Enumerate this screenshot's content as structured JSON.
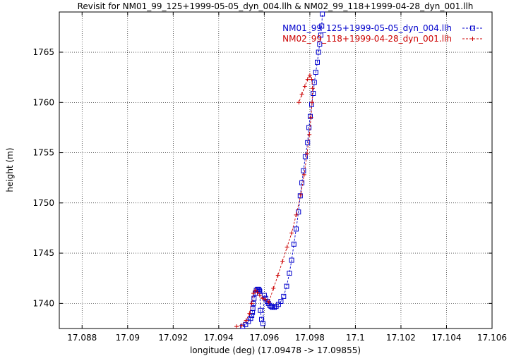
{
  "chart_data": {
    "type": "line",
    "title": "Revisit for NM01_99_125+1999-05-05_dyn_004.llh & NM02_99_118+1999-04-28_dyn_001.llh",
    "xlabel": "longitude (deg) (17.09478 -> 17.09855)",
    "ylabel": "height (m)",
    "xlim": [
      17.087,
      17.106
    ],
    "ylim": [
      1737.5,
      1769
    ],
    "xticks": [
      "17.088",
      "17.09",
      "17.092",
      "17.094",
      "17.096",
      "17.098",
      "17.1",
      "17.102",
      "17.104",
      "17.106"
    ],
    "yticks": [
      "1740",
      "1745",
      "1750",
      "1755",
      "1760",
      "1765"
    ],
    "grid": true,
    "legend_position": "top-right",
    "series": [
      {
        "name": "NM01_99_125+1999-05-05_dyn_004.llh",
        "color": "#0000cc",
        "marker": "square",
        "line": "dashed",
        "x": [
          17.09505,
          17.09518,
          17.0953,
          17.0954,
          17.09545,
          17.09548,
          17.0955,
          17.09552,
          17.09555,
          17.0956,
          17.09565,
          17.0957,
          17.09575,
          17.09578,
          17.0958,
          17.09583,
          17.09588,
          17.09594,
          17.096,
          17.09606,
          17.09613,
          17.09618,
          17.09624,
          17.0963,
          17.09636,
          17.09644,
          17.09652,
          17.09662,
          17.09673,
          17.09685,
          17.09698,
          17.0971,
          17.0972,
          17.0973,
          17.0974,
          17.0975,
          17.09758,
          17.09765,
          17.09772,
          17.0978,
          17.0979,
          17.09796,
          17.09802,
          17.09808,
          17.09815,
          17.0982,
          17.09826,
          17.09833,
          17.09838,
          17.09843,
          17.09848,
          17.09852,
          17.09855
        ],
        "y": [
          1737.7,
          1737.9,
          1738.2,
          1738.5,
          1738.8,
          1739.1,
          1739.5,
          1740.0,
          1740.5,
          1741.0,
          1741.3,
          1741.4,
          1741.4,
          1741.3,
          1741.2,
          1739.3,
          1738.4,
          1738.0,
          1740.8,
          1740.5,
          1740.2,
          1740.0,
          1739.8,
          1739.7,
          1739.6,
          1739.6,
          1739.7,
          1739.9,
          1740.2,
          1740.7,
          1741.7,
          1743.0,
          1744.3,
          1745.9,
          1747.4,
          1749.1,
          1750.7,
          1752.0,
          1753.2,
          1754.6,
          1756.0,
          1757.5,
          1758.6,
          1759.8,
          1760.9,
          1762.0,
          1763.0,
          1764.0,
          1765.0,
          1765.8,
          1766.7,
          1767.6,
          1768.8
        ]
      },
      {
        "name": "NM02_99_118+1999-04-28_dyn_001.llh",
        "color": "#cc0000",
        "marker": "plus",
        "line": "dashed",
        "x": [
          17.09478,
          17.095,
          17.0952,
          17.09535,
          17.09545,
          17.09552,
          17.0956,
          17.0957,
          17.0958,
          17.09592,
          17.09605,
          17.0962,
          17.0964,
          17.0966,
          17.0968,
          17.097,
          17.0972,
          17.0974,
          17.0976,
          17.09775,
          17.09788,
          17.09798,
          17.09805,
          17.0981,
          17.09812,
          17.09808,
          17.098,
          17.0979,
          17.09778,
          17.09765,
          17.09752
        ],
        "y": [
          1737.7,
          1737.8,
          1738.3,
          1739.0,
          1740.0,
          1741.0,
          1741.3,
          1741.1,
          1740.8,
          1740.5,
          1740.4,
          1740.1,
          1741.5,
          1742.8,
          1744.2,
          1745.6,
          1747.0,
          1748.8,
          1750.8,
          1752.8,
          1754.9,
          1756.8,
          1758.5,
          1760.0,
          1761.4,
          1762.3,
          1762.7,
          1762.3,
          1761.6,
          1760.8,
          1760.0
        ]
      }
    ]
  }
}
